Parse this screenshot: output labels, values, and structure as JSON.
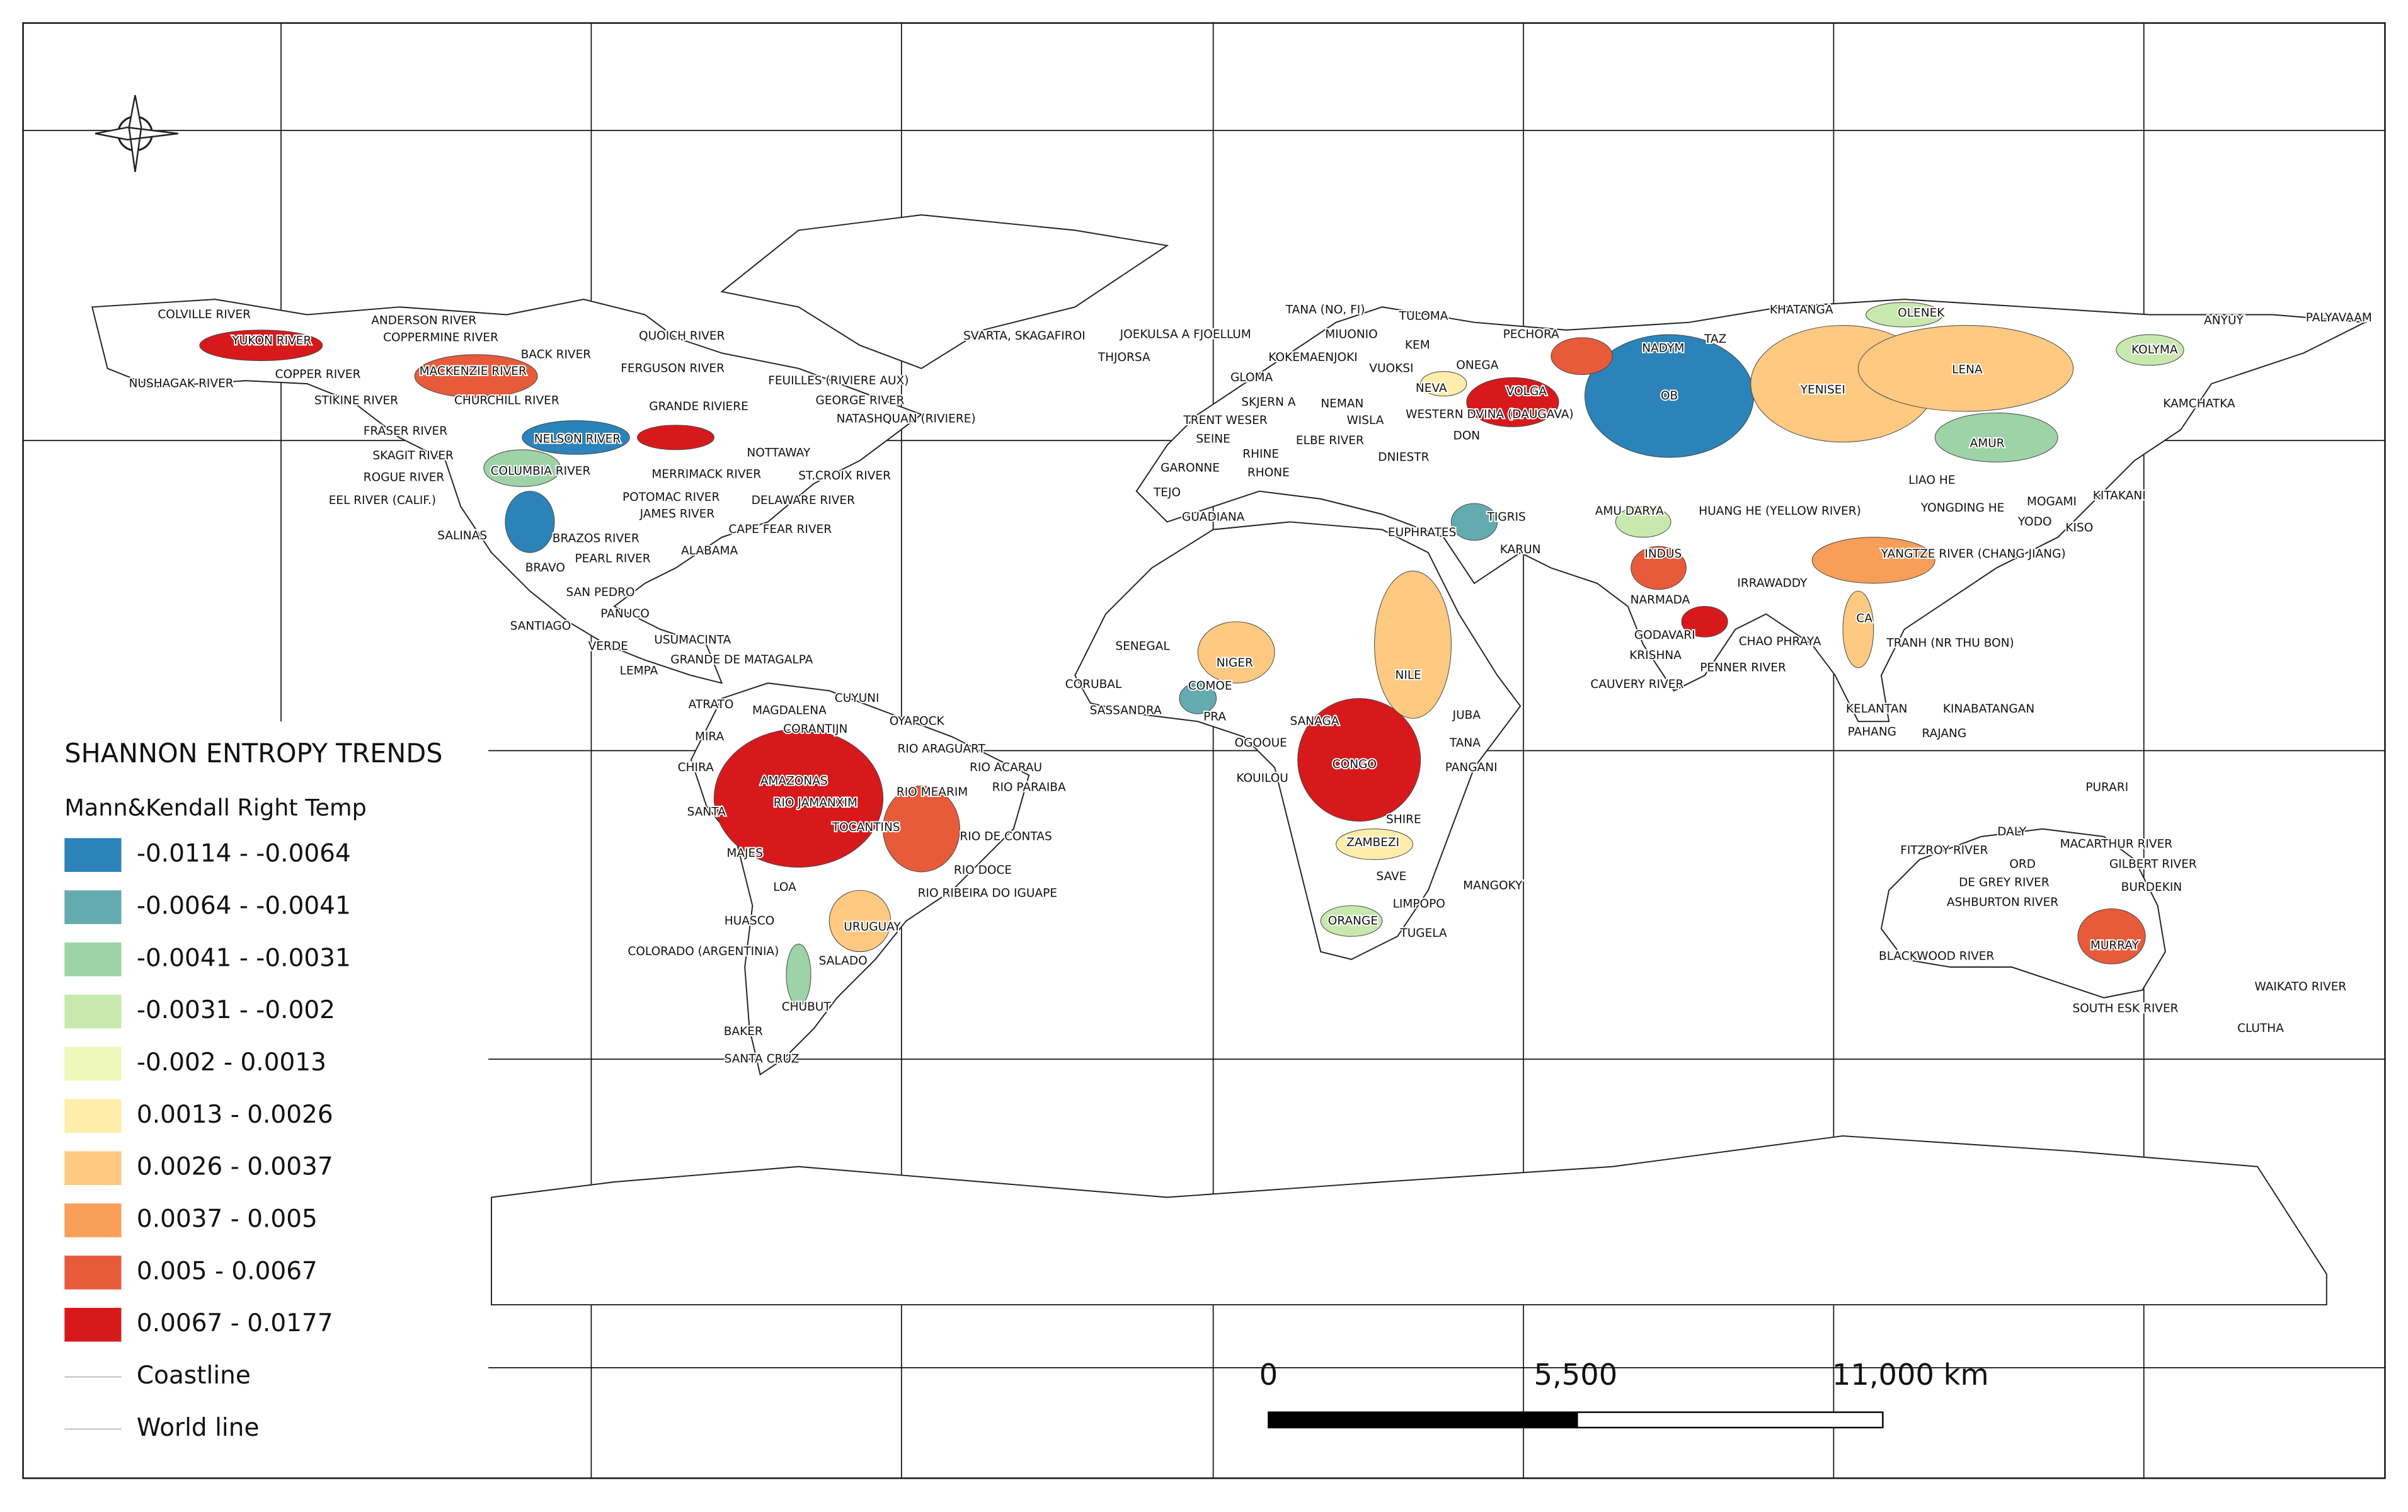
{
  "map": {
    "legend": {
      "title": "SHANNON ENTROPY TRENDS",
      "subtitle": "Mann&Kendall Right Temp",
      "classes": [
        {
          "label": "-0.0114 - -0.0064",
          "color": "#2b83ba"
        },
        {
          "label": "-0.0064 - -0.0041",
          "color": "#64abb0"
        },
        {
          "label": "-0.0041 - -0.0031",
          "color": "#9dd3a7"
        },
        {
          "label": "-0.0031 - -0.002",
          "color": "#c7e9ad"
        },
        {
          "label": "-0.002 - 0.0013",
          "color": "#edf8b9"
        },
        {
          "label": "0.0013 - 0.0026",
          "color": "#ffeda9"
        },
        {
          "label": "0.0026 - 0.0037",
          "color": "#fec980"
        },
        {
          "label": "0.0037 - 0.005",
          "color": "#f99e59"
        },
        {
          "label": "0.005 - 0.0067",
          "color": "#e85b3a"
        },
        {
          "label": "0.0067 - 0.0177",
          "color": "#d7191c"
        }
      ],
      "lines": [
        "Coastline",
        "World line"
      ]
    },
    "scale_bar": {
      "labels": [
        "0",
        "5,500",
        "11,000 km"
      ]
    },
    "rivers": [
      "COLVILLE RIVER",
      "ANDERSON RIVER",
      "YUKON RIVER",
      "COPPERMINE RIVER",
      "QUOICH RIVER",
      "BACK RIVER",
      "NUSHAGAK RIVER",
      "COPPER RIVER",
      "MACKENZIE RIVER",
      "FERGUSON RIVER",
      "FEUILLES (RIVIERE AUX)",
      "STIKINE RIVER",
      "CHURCHILL RIVER",
      "GRANDE RIVIERE",
      "GEORGE RIVER",
      "NATASHQUAN (RIVIERE)",
      "FRASER RIVER",
      "NELSON RIVER",
      "NOTTAWAY",
      "SKAGIT RIVER",
      "COLUMBIA RIVER",
      "MERRIMACK RIVER",
      "ST.CROIX RIVER",
      "ROGUE RIVER",
      "POTOMAC RIVER",
      "DELAWARE RIVER",
      "EEL RIVER (CALIF.)",
      "JAMES RIVER",
      "CAPE FEAR RIVER",
      "SALINAS",
      "BRAZOS RIVER",
      "ALABAMA",
      "PEARL RIVER",
      "BRAVO",
      "SAN PEDRO",
      "PANUCO",
      "SANTIAGO",
      "USUMACINTA",
      "VERDE",
      "GRANDE DE MATAGALPA",
      "LEMPA",
      "CUYUNI",
      "ATRATO",
      "MAGDALENA",
      "OYAPOCK",
      "CORANTIJN",
      "MIRA",
      "RIO ARAGUART",
      "CHIRA",
      "RIO ACARAU",
      "AMAZONAS",
      "RIO PARAIBA",
      "RIO MEARIM",
      "RIO JAMANXIM",
      "SANTA",
      "TOCANTINS",
      "RIO DE CONTAS",
      "MAJES",
      "RIO DOCE",
      "LOA",
      "RIO RIBEIRA DO IGUAPE",
      "HUASCO",
      "URUGUAY",
      "COLORADO (ARGENTINIA)",
      "SALADO",
      "CHUBUT",
      "BAKER",
      "SANTA CRUZ",
      "SVARTA, SKAGAFIROI",
      "JOEKULSA A FJOELLUM",
      "THJORSA",
      "TANA (NO, FI)",
      "TULOMA",
      "MIUONIO",
      "KEM",
      "PECHORA",
      "KOKEMAENJOKI",
      "VUOKSI",
      "ONEGA",
      "GLOMA",
      "NEVA",
      "VOLGA",
      "SKJERN A",
      "NEMAN",
      "TRENT WESER",
      "WISLA",
      "WESTERN DVINA (DAUGAVA)",
      "SEINE",
      "ELBE RIVER",
      "DON",
      "RHINE",
      "DNIESTR",
      "GARONNE",
      "RHONE",
      "TEJO",
      "GUADIANA",
      "TIGRIS",
      "EUPHRATES",
      "KARUN",
      "NADYM",
      "TAZ",
      "KHATANGA",
      "OLENEK",
      "ANYUY",
      "PALYAVAAM",
      "KOLYMA",
      "LENA",
      "YENISEI",
      "OB",
      "KAMCHATKA",
      "AMUR",
      "LIAO HE",
      "AMU DARYA",
      "HUANG HE (YELLOW RIVER)",
      "YONGDING HE",
      "MOGAMI",
      "KITAKANI",
      "YODO",
      "KISO",
      "INDUS",
      "YANGTZE RIVER (CHANG JIANG)",
      "IRRAWADDY",
      "NARMADA",
      "CA",
      "GODAVARI",
      "CHAO PHRAYA",
      "TRANH (NR THU BON)",
      "KRISHNA",
      "PENNER RIVER",
      "CAUVERY RIVER",
      "SENEGAL",
      "NIGER",
      "NILE",
      "CORUBAL",
      "COMOE",
      "SASSANDRA",
      "PRA",
      "JUBA",
      "SANAGA",
      "TANA",
      "OGOOUE",
      "CONGO",
      "PANGANI",
      "KOUILOU",
      "SHIRE",
      "ZAMBEZI",
      "MANGOKY",
      "SAVE",
      "LIMPOPO",
      "ORANGE",
      "TUGELA",
      "KELANTAN",
      "KINABATANGAN",
      "PAHANG",
      "RAJANG",
      "PURARI",
      "DALY",
      "MACARTHUR RIVER",
      "FITZROY RIVER",
      "ORD",
      "GILBERT RIVER",
      "DE GREY RIVER",
      "BURDEKIN",
      "ASHBURTON RIVER",
      "MURRAY",
      "BLACKWOOD RIVER",
      "WAIKATO RIVER",
      "SOUTH ESK RIVER",
      "CLUTHA"
    ]
  }
}
